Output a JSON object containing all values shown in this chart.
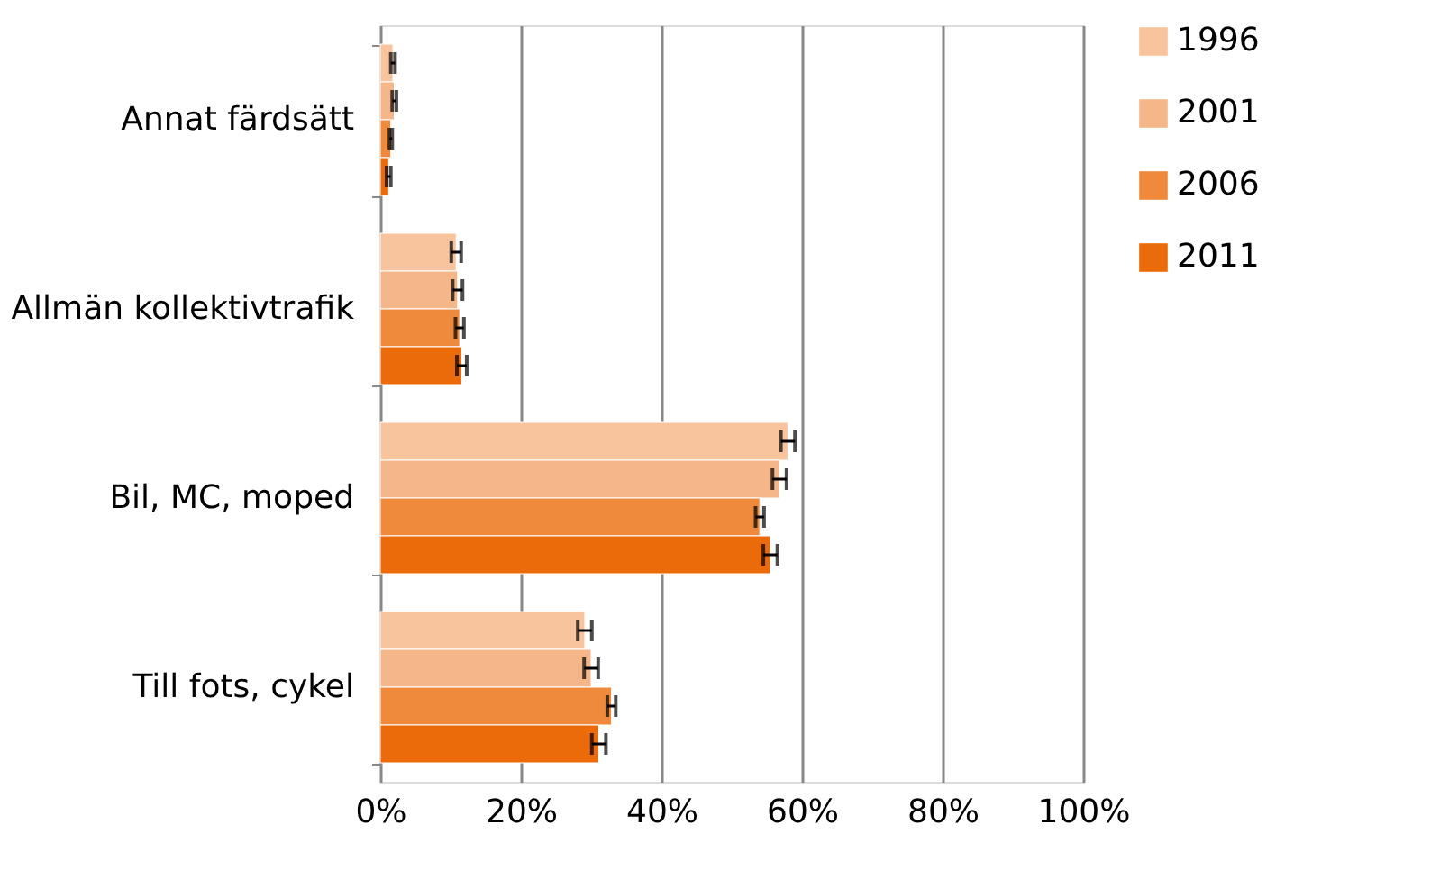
{
  "chart_data": {
    "type": "bar",
    "orientation": "horizontal",
    "categories": [
      "Annat färdsätt",
      "Allmän kollektivtrafik",
      "Bil, MC, moped",
      "Till fots, cykel"
    ],
    "series": [
      {
        "name": "1996",
        "color": "#f8c49e",
        "values": [
          1.8,
          10.8,
          58,
          29.1
        ],
        "errors": [
          0.3,
          0.7,
          1,
          1
        ]
      },
      {
        "name": "2001",
        "color": "#f5b68a",
        "values": [
          2,
          11,
          56.8,
          30
        ],
        "errors": [
          0.3,
          0.7,
          1,
          1
        ]
      },
      {
        "name": "2006",
        "color": "#ef8a3c",
        "values": [
          1.5,
          11.3,
          54,
          32.9
        ],
        "errors": [
          0.2,
          0.6,
          0.6,
          0.6
        ]
      },
      {
        "name": "2011",
        "color": "#eb6a0a",
        "values": [
          1.2,
          11.6,
          55.5,
          31.1
        ],
        "errors": [
          0.3,
          0.7,
          1,
          1
        ]
      }
    ],
    "xlim": [
      0,
      100
    ],
    "xticks": [
      {
        "value": 0,
        "label": "0%"
      },
      {
        "value": 20,
        "label": "20%"
      },
      {
        "value": 40,
        "label": "40%"
      },
      {
        "value": 60,
        "label": "60%"
      },
      {
        "value": 80,
        "label": "80%"
      },
      {
        "value": 100,
        "label": "100%"
      }
    ],
    "grid": "x",
    "legend": "right"
  }
}
